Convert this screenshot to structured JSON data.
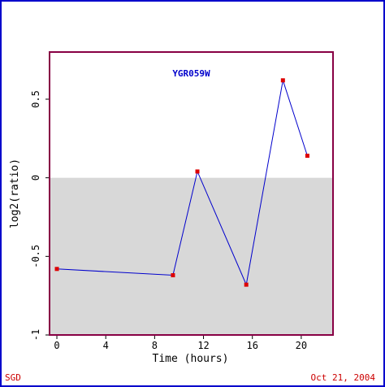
{
  "chart_data": {
    "type": "line",
    "title": "YGR059W",
    "xlabel": "Time (hours)",
    "ylabel": "log2(ratio)",
    "xlim": [
      -0.6,
      22.6
    ],
    "ylim": [
      -1.0,
      0.8
    ],
    "xticks": [
      0,
      4,
      8,
      12,
      16,
      20
    ],
    "xtick_labels": [
      "0",
      "4",
      "8",
      "12",
      "16",
      "20"
    ],
    "yticks": [
      -1,
      -0.5,
      0,
      0.5
    ],
    "ytick_labels": [
      "-1",
      "-0.5",
      "0",
      "0.5"
    ],
    "negative_region_shaded": true,
    "series": [
      {
        "x": [
          0,
          9.5,
          11.5,
          15.5,
          18.5,
          20.5
        ],
        "y": [
          -0.58,
          -0.62,
          0.04,
          -0.68,
          0.62,
          0.14
        ]
      }
    ]
  },
  "footer": {
    "left": "SGD",
    "right": "Oct 21, 2004"
  },
  "colors": {
    "frame": "#0000cc",
    "plot_border": "#880044",
    "line": "#0000cc",
    "marker": "#dd0000",
    "title": "#0000cc",
    "shade": "#d8d8d8",
    "footer": "#cc0000"
  }
}
